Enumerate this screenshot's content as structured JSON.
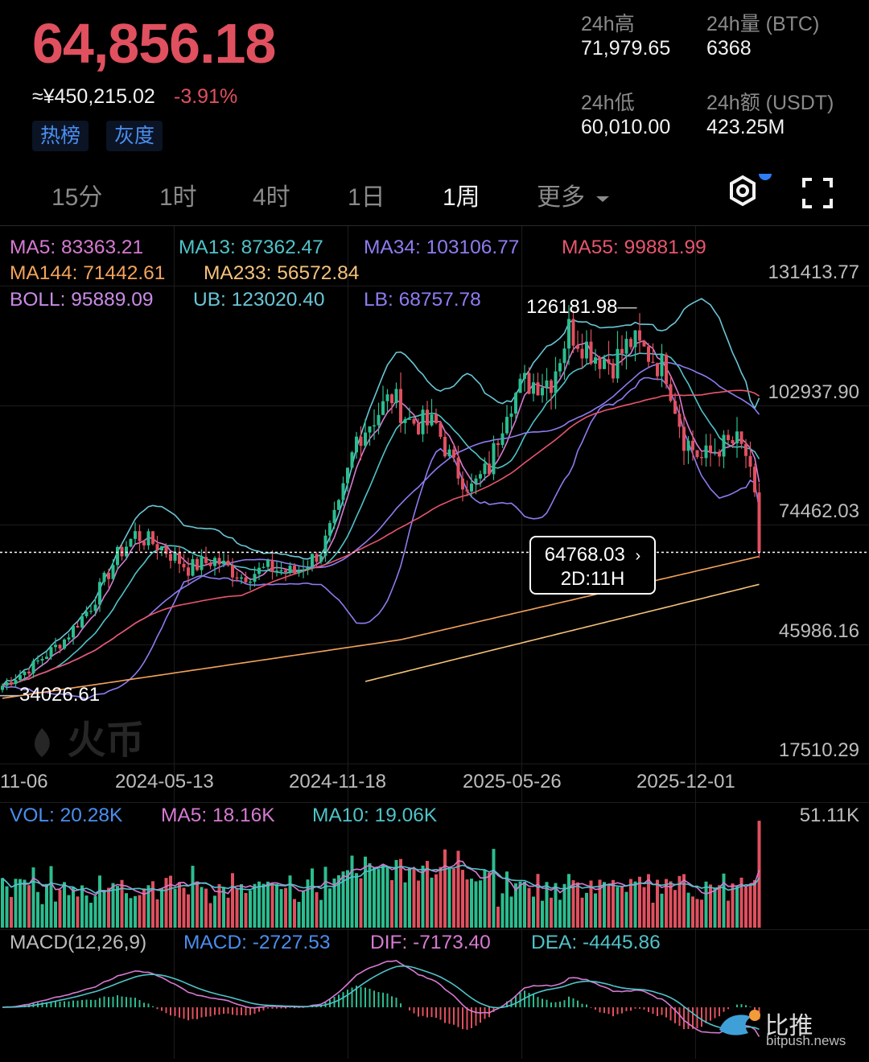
{
  "header": {
    "last_price": "64,856.18",
    "cny_price": "≈¥450,215.02",
    "change_pct": "-3.91%",
    "tags": [
      "热榜",
      "灰度"
    ],
    "stats": {
      "high_label": "24h高",
      "high_value": "71,979.65",
      "volume_label": "24h量 (BTC)",
      "volume_value": "6368",
      "low_label": "24h低",
      "low_value": "60,010.00",
      "amount_label": "24h额 (USDT)",
      "amount_value": "423.25M"
    }
  },
  "timeframes": {
    "items": [
      "15分",
      "1时",
      "4时",
      "1日",
      "1周",
      "更多"
    ],
    "active": "1周"
  },
  "toolbar": {
    "settings_icon": "gear-icon",
    "fullscreen_icon": "fullscreen-icon",
    "more_icon": "caret-down-icon"
  },
  "indicators": {
    "ma5": "MA5: 83363.21",
    "ma13": "MA13: 87362.47",
    "ma34": "MA34: 103106.77",
    "ma55": "MA55: 99881.99",
    "ma144": "MA144: 71442.61",
    "ma233": "MA233: 56572.84",
    "boll": "BOLL: 95889.09",
    "ub": "UB: 123020.40",
    "lb": "LB: 68757.78"
  },
  "price_axis": [
    "131413.77",
    "102937.90",
    "74462.03",
    "45986.16",
    "17510.29"
  ],
  "annotations": {
    "high_marker": "126181.98",
    "low_marker": "34026.61"
  },
  "crosshair": {
    "price": "64768.03",
    "countdown": "2D:11H"
  },
  "date_axis": [
    "11-06",
    "2024-05-13",
    "2024-11-18",
    "2025-05-26",
    "2025-12-01"
  ],
  "volume": {
    "vol": "VOL: 20.28K",
    "ma5": "MA5: 18.16K",
    "ma10": "MA10: 19.06K",
    "max": "51.11K"
  },
  "macd": {
    "title": "MACD(12,26,9)",
    "macd": "MACD: -2727.53",
    "dif": "DIF: -7173.40",
    "dea": "DEA: -4445.86"
  },
  "watermarks": {
    "exchange": "火币",
    "source": "比推",
    "source_url": "bitpush.news"
  },
  "colors": {
    "up": "#2bbd8f",
    "down": "#e0505f",
    "accent": "#4a8ef0",
    "ma5": "#d67ad2",
    "ma13": "#4fc3c9",
    "ma34": "#8e7cf0",
    "ma55": "#e8556e",
    "ma144": "#f5a35a",
    "ma233": "#f5c27a",
    "boll": "#c98be6",
    "bands": "#6ac6d6"
  },
  "chart_data": {
    "type": "candlestick",
    "interval": "1周",
    "y_range": [
      17510.29,
      131413.77
    ],
    "x_ticks": [
      "11-06",
      "2024-05-13",
      "2024-11-18",
      "2025-05-26",
      "2025-12-01"
    ],
    "close_anchors": [
      {
        "x": 0,
        "y": 33000
      },
      {
        "x": 6,
        "y": 37000
      },
      {
        "x": 14,
        "y": 44000
      },
      {
        "x": 20,
        "y": 52000
      },
      {
        "x": 26,
        "y": 64000
      },
      {
        "x": 30,
        "y": 69000
      },
      {
        "x": 36,
        "y": 66000
      },
      {
        "x": 42,
        "y": 61000
      },
      {
        "x": 48,
        "y": 63000
      },
      {
        "x": 54,
        "y": 59000
      },
      {
        "x": 60,
        "y": 61000
      },
      {
        "x": 66,
        "y": 60000
      },
      {
        "x": 72,
        "y": 65000
      },
      {
        "x": 76,
        "y": 75000
      },
      {
        "x": 80,
        "y": 92000
      },
      {
        "x": 84,
        "y": 97000
      },
      {
        "x": 88,
        "y": 102000
      },
      {
        "x": 92,
        "y": 96000
      },
      {
        "x": 98,
        "y": 95000
      },
      {
        "x": 102,
        "y": 85000
      },
      {
        "x": 106,
        "y": 80000
      },
      {
        "x": 110,
        "y": 85000
      },
      {
        "x": 114,
        "y": 100000
      },
      {
        "x": 118,
        "y": 105000
      },
      {
        "x": 124,
        "y": 106000
      },
      {
        "x": 128,
        "y": 118000
      },
      {
        "x": 134,
        "y": 112000
      },
      {
        "x": 138,
        "y": 110000
      },
      {
        "x": 142,
        "y": 115000
      },
      {
        "x": 146,
        "y": 112000
      },
      {
        "x": 150,
        "y": 108000
      },
      {
        "x": 154,
        "y": 92000
      },
      {
        "x": 158,
        "y": 87000
      },
      {
        "x": 162,
        "y": 90000
      },
      {
        "x": 166,
        "y": 91000
      },
      {
        "x": 168,
        "y": 88000
      },
      {
        "x": 170,
        "y": 77000
      },
      {
        "x": 171,
        "y": 64856
      }
    ],
    "markers": {
      "max": 126181.98,
      "min": 34026.61,
      "current": 64768.03
    },
    "volume_max": 51110
  }
}
